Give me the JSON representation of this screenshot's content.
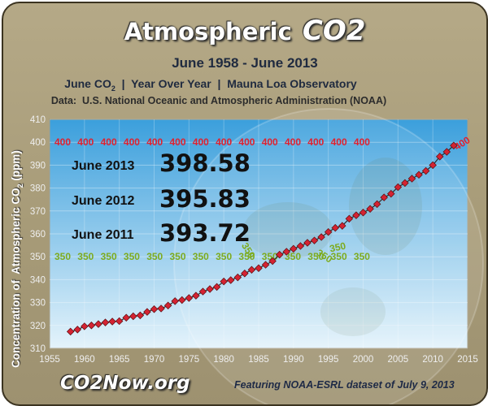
{
  "header": {
    "title": "Atmospheric",
    "title_accent": "CO2",
    "date_range": "June 1958 - June 2013",
    "meta_parts": [
      "June CO",
      "2",
      "  |  Year Over Year  |  Mauna Loa Observatory"
    ],
    "source": "Data:  U.S. National Oceanic and Atmospheric Administration (NOAA)"
  },
  "y_axis_label_parts": [
    "Concentration of  Atmospheric CO",
    "2",
    " (ppm)"
  ],
  "footer": {
    "logo": "CO2Now.org",
    "note": "Featuring NOAA-ESRL dataset of July 9, 2013"
  },
  "colors": {
    "series": "#d42332",
    "line": "#2c2c2c",
    "label_400": "#e0202e",
    "label_350": "#7dab1e",
    "plot_top": "#3b9fdc",
    "plot_bottom": "#e4f3fb"
  },
  "chart_data": {
    "type": "line",
    "title": "Atmospheric CO2",
    "subtitle": "June 1958 - June 2013",
    "xlabel": "",
    "ylabel": "Concentration of Atmospheric CO2 (ppm)",
    "xlim": [
      1955,
      2015
    ],
    "ylim": [
      310,
      410
    ],
    "x_ticks": [
      1955,
      1960,
      1965,
      1970,
      1975,
      1980,
      1985,
      1990,
      1995,
      2000,
      2005,
      2010,
      2015
    ],
    "y_ticks": [
      310,
      320,
      330,
      340,
      350,
      360,
      370,
      380,
      390,
      400,
      410
    ],
    "grid": true,
    "series": [
      {
        "name": "June CO2",
        "x": [
          1958,
          1959,
          1960,
          1961,
          1962,
          1963,
          1964,
          1965,
          1966,
          1967,
          1968,
          1969,
          1970,
          1971,
          1972,
          1973,
          1974,
          1975,
          1976,
          1977,
          1978,
          1979,
          1980,
          1981,
          1982,
          1983,
          1984,
          1985,
          1986,
          1987,
          1988,
          1989,
          1990,
          1991,
          1992,
          1993,
          1994,
          1995,
          1996,
          1997,
          1998,
          1999,
          2000,
          2001,
          2002,
          2003,
          2004,
          2005,
          2006,
          2007,
          2008,
          2009,
          2010,
          2011,
          2012,
          2013
        ],
        "values": [
          317.3,
          318.2,
          319.6,
          320.0,
          320.6,
          321.3,
          321.7,
          321.9,
          323.4,
          324.0,
          324.4,
          325.9,
          327.1,
          327.4,
          328.7,
          330.6,
          331.1,
          332.0,
          333.0,
          334.8,
          335.9,
          336.8,
          339.2,
          339.8,
          341.0,
          342.7,
          344.3,
          345.0,
          346.5,
          348.1,
          350.9,
          352.2,
          353.5,
          354.7,
          356.1,
          357.1,
          358.6,
          360.8,
          362.6,
          363.5,
          366.6,
          368.1,
          369.3,
          370.9,
          373.0,
          375.9,
          377.5,
          380.4,
          382.2,
          384.1,
          385.8,
          387.5,
          390.0,
          393.72,
          395.83,
          398.58
        ]
      }
    ],
    "threshold_labels": {
      "upper": {
        "text": "400",
        "value": 400,
        "count": 14
      },
      "lower": {
        "text": "350",
        "value": 350,
        "count": 14
      }
    },
    "highlights": [
      {
        "label": "June 2013",
        "value": "398.58"
      },
      {
        "label": "June 2012",
        "value": "395.83"
      },
      {
        "label": "June 2011",
        "value": "393.72"
      }
    ]
  }
}
